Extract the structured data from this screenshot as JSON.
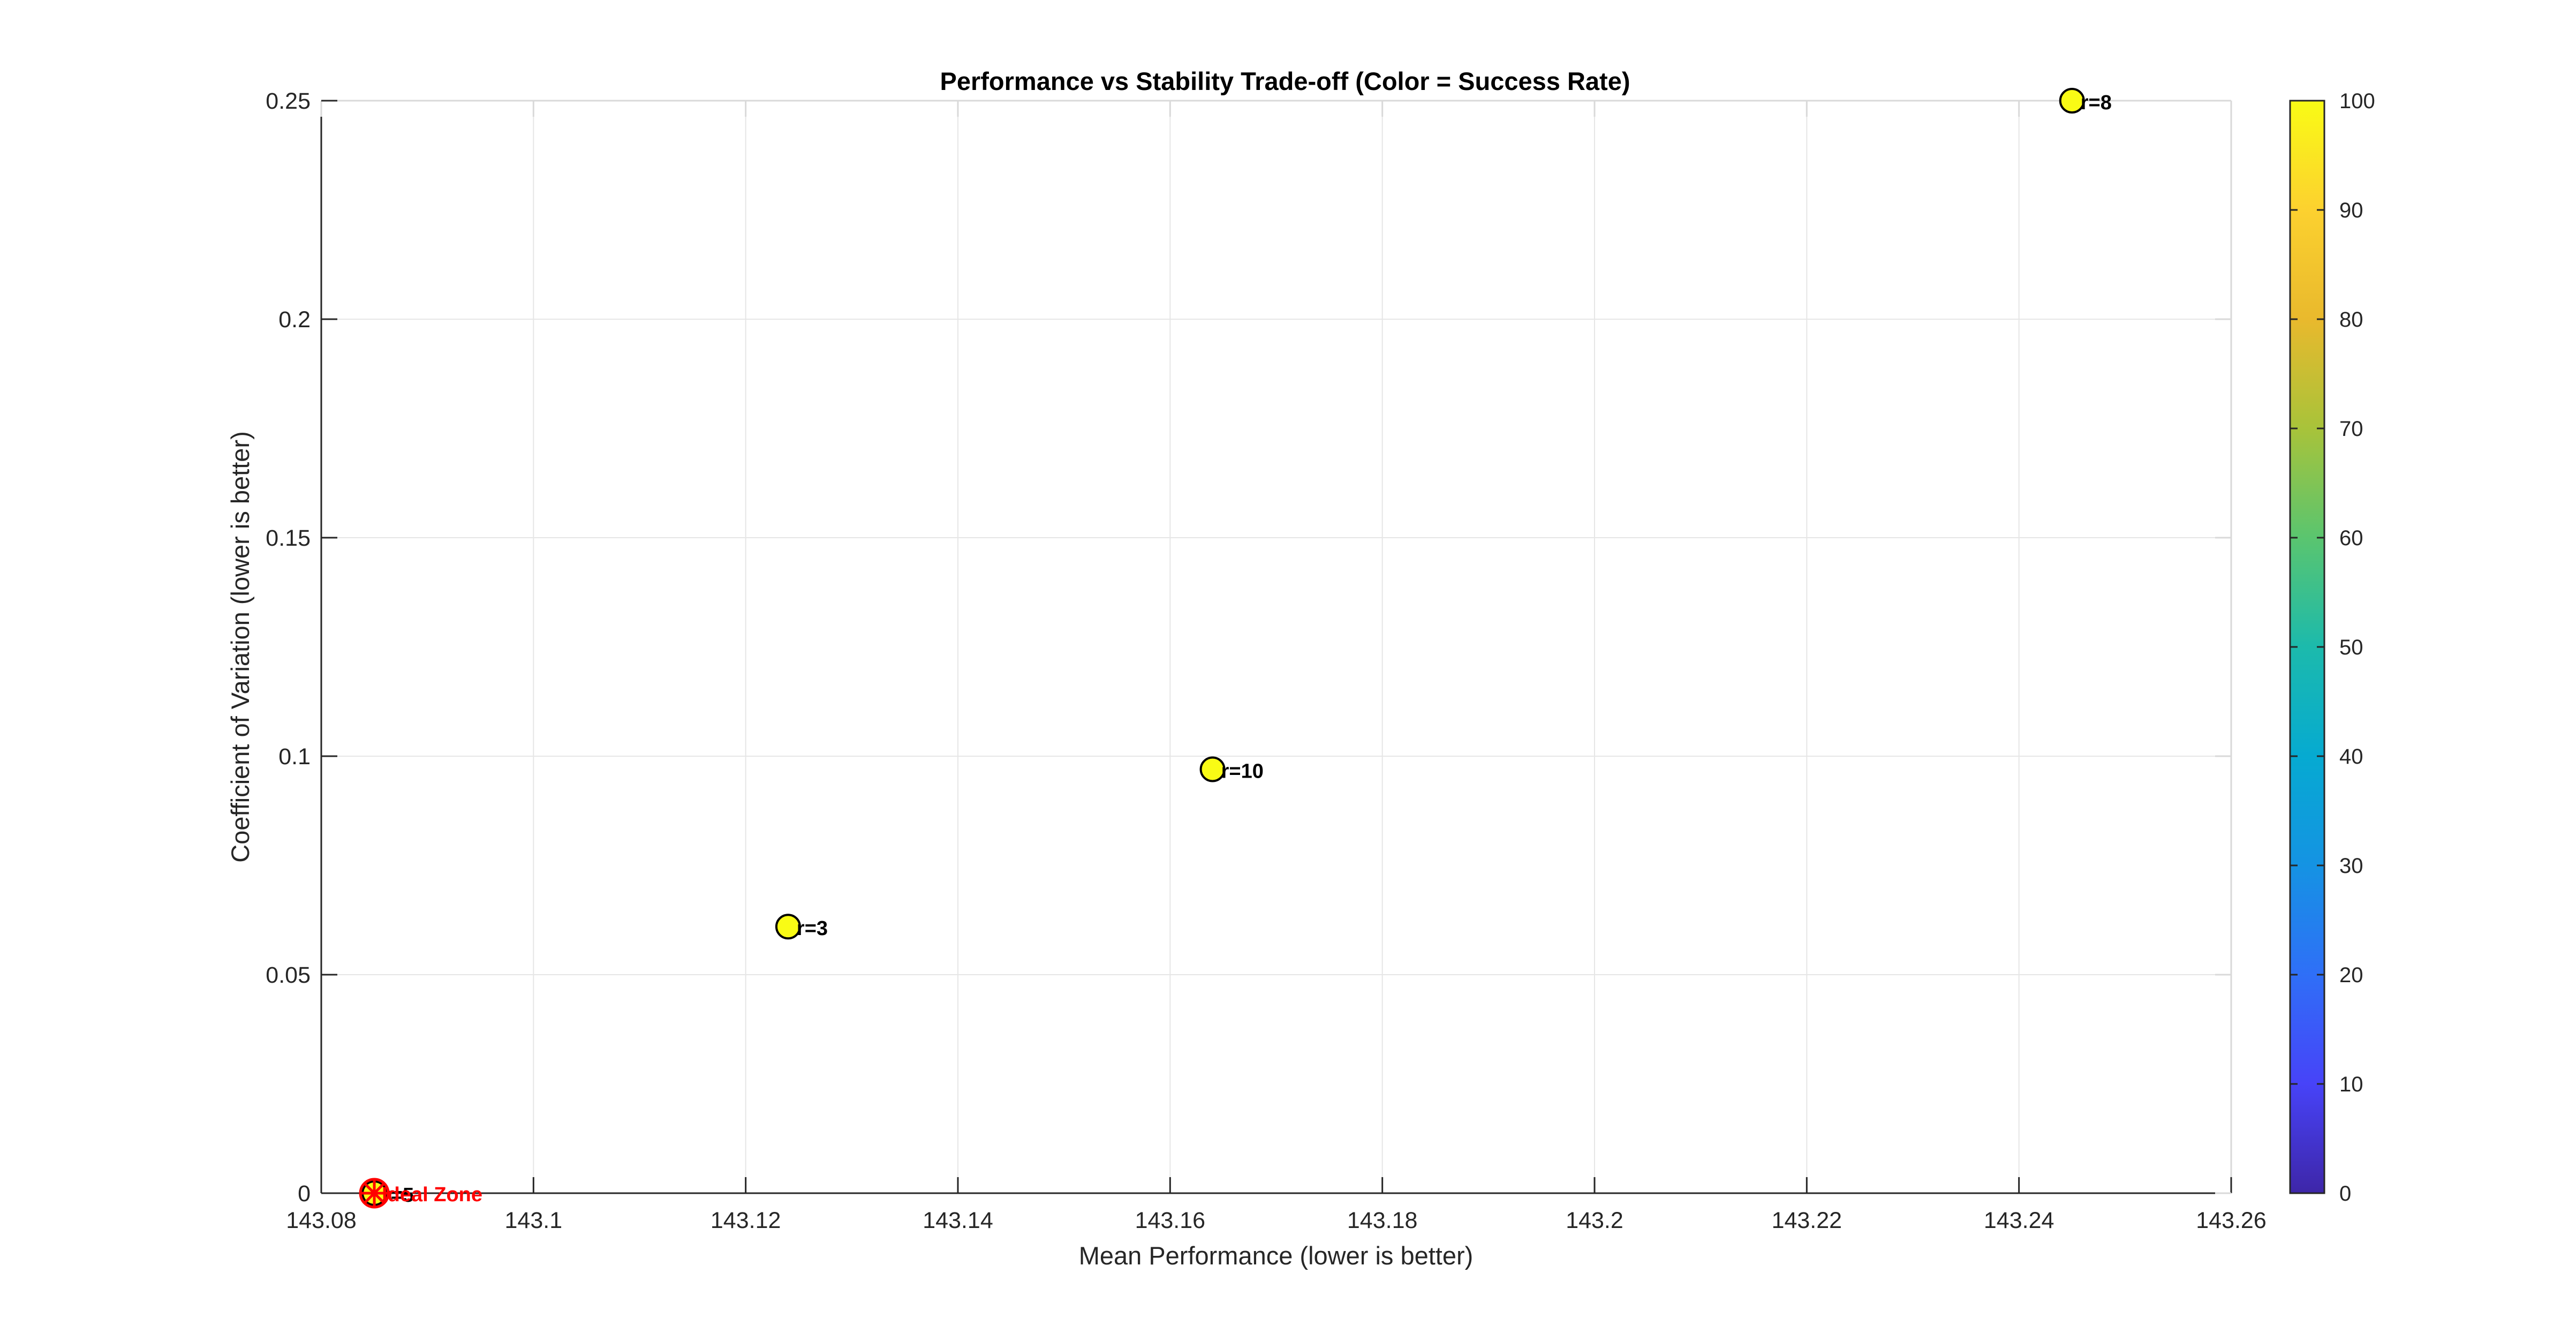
{
  "chart_data": {
    "type": "scatter",
    "title": "Performance vs Stability Trade-off (Color = Success Rate)",
    "xlabel": "Mean Performance (lower is better)",
    "ylabel": "Coefficient of Variation (lower is better)",
    "xlim": [
      143.08,
      143.26
    ],
    "ylim": [
      0,
      0.25
    ],
    "xticks": [
      143.08,
      143.1,
      143.12,
      143.14,
      143.16,
      143.18,
      143.2,
      143.22,
      143.24,
      143.26
    ],
    "xtick_labels": [
      "143.08",
      "143.1",
      "143.12",
      "143.14",
      "143.16",
      "143.18",
      "143.2",
      "143.22",
      "143.24",
      "143.26"
    ],
    "yticks": [
      0,
      0.05,
      0.1,
      0.15,
      0.2,
      0.25
    ],
    "ytick_labels": [
      "0",
      "0.05",
      "0.1",
      "0.15",
      "0.2",
      "0.25"
    ],
    "grid": true,
    "points": [
      {
        "x": 143.085,
        "y": 0.0,
        "label": "r=5",
        "success_rate": 100
      },
      {
        "x": 143.124,
        "y": 0.061,
        "label": "r=3",
        "success_rate": 100
      },
      {
        "x": 143.164,
        "y": 0.097,
        "label": "r=10",
        "success_rate": 100
      },
      {
        "x": 143.245,
        "y": 0.25,
        "label": "r=8",
        "success_rate": 100
      }
    ],
    "highlight": {
      "x": 143.085,
      "y": 0.0,
      "marker": "star",
      "label": "Ideal Zone",
      "color": "#ff0000"
    },
    "colorbar": {
      "colormap": "parula",
      "range": [
        0,
        100
      ],
      "ticks": [
        0,
        10,
        20,
        30,
        40,
        50,
        60,
        70,
        80,
        90,
        100
      ],
      "tick_labels": [
        "0",
        "10",
        "20",
        "30",
        "40",
        "50",
        "60",
        "70",
        "80",
        "90",
        "100"
      ],
      "stops": [
        "#3e26a8",
        "#4743f8",
        "#2f6ff7",
        "#1593e3",
        "#06aad1",
        "#1cbaac",
        "#5ac56f",
        "#a8c33a",
        "#e9b92d",
        "#fcd12f",
        "#f9fb15"
      ]
    }
  }
}
